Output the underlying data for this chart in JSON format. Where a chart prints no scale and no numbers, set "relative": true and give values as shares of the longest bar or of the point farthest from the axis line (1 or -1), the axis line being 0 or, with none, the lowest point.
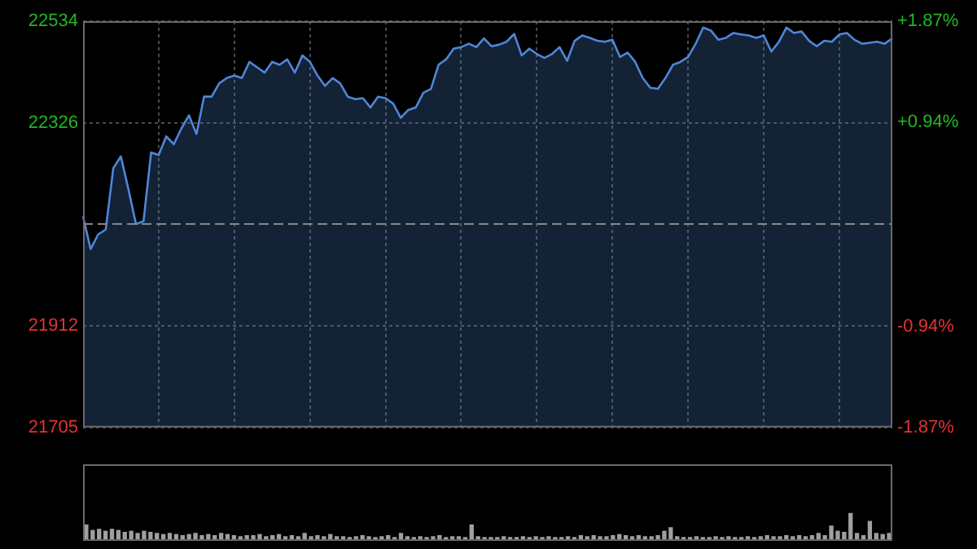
{
  "chart_data": [
    {
      "type": "area",
      "categories": [
        null,
        null,
        null,
        null,
        null,
        null,
        null,
        null,
        null,
        null,
        null,
        null,
        null,
        null,
        null,
        null,
        null,
        null,
        null,
        null,
        null,
        null,
        null,
        null,
        null,
        null,
        null,
        null,
        null,
        null,
        null,
        null,
        null,
        null,
        null,
        null,
        null,
        null,
        null,
        null,
        null,
        null,
        null,
        null,
        null,
        null,
        null,
        null,
        null,
        null,
        null,
        null,
        null,
        null,
        null,
        null,
        null,
        null,
        null,
        null,
        null,
        null,
        null,
        null,
        null,
        null,
        null,
        null,
        null,
        null,
        null,
        null,
        null,
        null,
        null,
        null,
        null,
        null,
        null,
        null,
        null,
        null,
        null,
        null,
        null,
        null,
        null,
        null,
        null,
        null,
        null,
        null,
        null,
        null,
        null,
        null,
        null,
        null,
        null,
        null,
        null,
        null,
        null,
        null,
        null,
        null,
        null,
        null
      ],
      "ylim": [
        21705,
        22534
      ],
      "yticks": [
        21705,
        21912,
        22326,
        22534
      ],
      "y2lim": [
        -1.87,
        1.87
      ],
      "y2ticks": [
        {
          "value": -1.87,
          "label": "-1.87%"
        },
        {
          "value": -0.94,
          "label": "-0.94%"
        },
        {
          "value": 0.94,
          "label": "+0.94%"
        },
        {
          "value": 1.87,
          "label": "+1.87%"
        }
      ],
      "grid": true,
      "legend": false,
      "ref_lines": [
        {
          "axis": "y",
          "value": 22120,
          "color": "#888888",
          "line_style": "dashed"
        }
      ],
      "series": [
        {
          "color": "#4f86d8",
          "values": [
            22136,
            22069,
            22099,
            22109,
            22234,
            22258,
            22191,
            22120,
            22126,
            22266,
            22261,
            22299,
            22283,
            22315,
            22342,
            22304,
            22380,
            22380,
            22407,
            22418,
            22423,
            22418,
            22451,
            22440,
            22429,
            22451,
            22445,
            22456,
            22429,
            22464,
            22451,
            22423,
            22402,
            22418,
            22407,
            22380,
            22375,
            22377,
            22358,
            22380,
            22377,
            22366,
            22337,
            22353,
            22358,
            22388,
            22396,
            22445,
            22456,
            22478,
            22481,
            22488,
            22481,
            22499,
            22483,
            22486,
            22492,
            22508,
            22464,
            22478,
            22467,
            22459,
            22467,
            22481,
            22453,
            22494,
            22505,
            22500,
            22494,
            22492,
            22496,
            22461,
            22470,
            22451,
            22418,
            22398,
            22396,
            22418,
            22445,
            22451,
            22461,
            22488,
            22521,
            22515,
            22496,
            22500,
            22510,
            22507,
            22505,
            22500,
            22505,
            22472,
            22492,
            22521,
            22510,
            22513,
            22494,
            22483,
            22494,
            22492,
            22507,
            22510,
            22496,
            22488,
            22490,
            22492,
            22488,
            22499
          ]
        }
      ]
    },
    {
      "type": "bar",
      "relative": true,
      "legend": false,
      "color": "#a0a0a0",
      "categories": [
        null,
        null,
        null,
        null,
        null,
        null,
        null,
        null,
        null,
        null,
        null,
        null,
        null,
        null,
        null,
        null,
        null,
        null,
        null,
        null,
        null,
        null,
        null,
        null,
        null,
        null,
        null,
        null,
        null,
        null,
        null,
        null,
        null,
        null,
        null,
        null,
        null,
        null,
        null,
        null,
        null,
        null,
        null,
        null,
        null,
        null,
        null,
        null,
        null,
        null,
        null,
        null,
        null,
        null,
        null,
        null,
        null,
        null,
        null,
        null,
        null,
        null,
        null,
        null,
        null,
        null,
        null,
        null,
        null,
        null,
        null,
        null,
        null,
        null,
        null,
        null,
        null,
        null,
        null,
        null,
        null,
        null,
        null,
        null,
        null,
        null,
        null,
        null,
        null,
        null,
        null,
        null,
        null,
        null,
        null,
        null,
        null,
        null,
        null,
        null,
        null,
        null,
        null,
        null,
        null,
        null,
        null,
        null,
        null,
        null,
        null,
        null,
        null,
        null,
        null,
        null,
        null,
        null,
        null,
        null,
        null,
        null,
        null,
        null,
        null,
        null
      ],
      "values": [
        0.58,
        0.38,
        0.42,
        0.35,
        0.42,
        0.38,
        0.31,
        0.35,
        0.27,
        0.35,
        0.31,
        0.27,
        0.23,
        0.27,
        0.23,
        0.19,
        0.23,
        0.27,
        0.19,
        0.23,
        0.19,
        0.27,
        0.23,
        0.19,
        0.15,
        0.19,
        0.19,
        0.23,
        0.15,
        0.19,
        0.23,
        0.15,
        0.19,
        0.15,
        0.27,
        0.15,
        0.19,
        0.15,
        0.23,
        0.15,
        0.15,
        0.12,
        0.15,
        0.19,
        0.15,
        0.12,
        0.15,
        0.19,
        0.12,
        0.27,
        0.15,
        0.12,
        0.15,
        0.12,
        0.15,
        0.19,
        0.12,
        0.15,
        0.15,
        0.12,
        0.58,
        0.15,
        0.12,
        0.12,
        0.12,
        0.15,
        0.12,
        0.12,
        0.15,
        0.12,
        0.15,
        0.12,
        0.15,
        0.12,
        0.12,
        0.15,
        0.12,
        0.19,
        0.15,
        0.19,
        0.15,
        0.15,
        0.19,
        0.23,
        0.19,
        0.15,
        0.19,
        0.15,
        0.15,
        0.19,
        0.35,
        0.48,
        0.15,
        0.12,
        0.12,
        0.15,
        0.12,
        0.12,
        0.15,
        0.12,
        0.15,
        0.12,
        0.12,
        0.15,
        0.12,
        0.15,
        0.19,
        0.15,
        0.15,
        0.19,
        0.15,
        0.19,
        0.15,
        0.19,
        0.27,
        0.19,
        0.54,
        0.35,
        0.31,
        1,
        0.27,
        0.19,
        0.71,
        0.27,
        0.23,
        0.27
      ]
    }
  ]
}
